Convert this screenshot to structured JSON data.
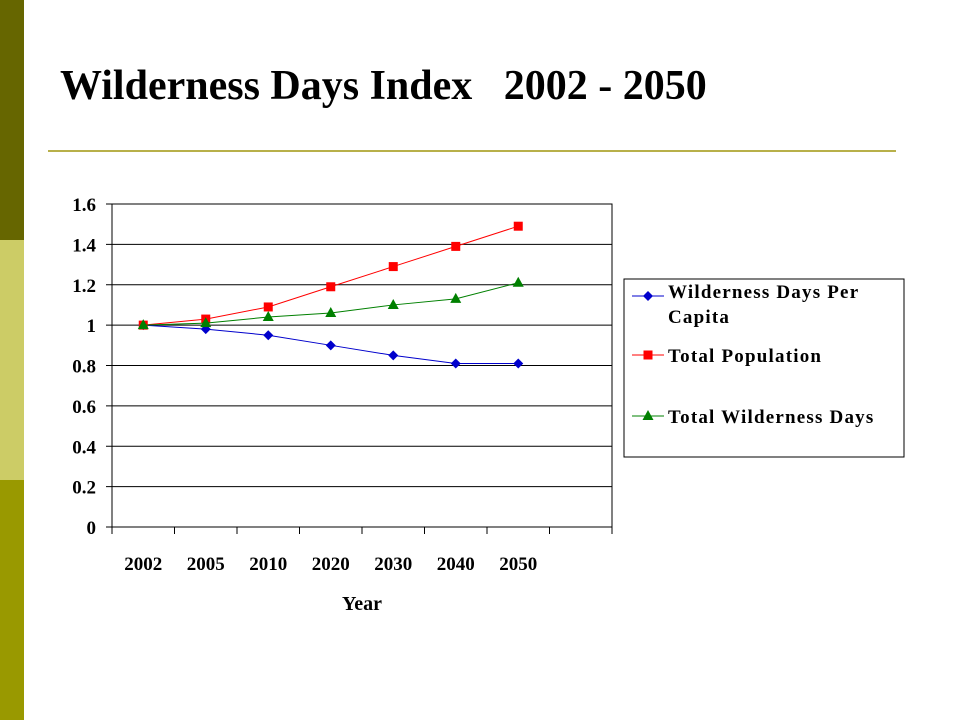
{
  "slide": {
    "title": "Wilderness Days Index   2002 - 2050",
    "sidebar_colors": [
      "#666600",
      "#cccc66",
      "#999900"
    ],
    "rule_color": "#b8b04a"
  },
  "chart_data": {
    "type": "line",
    "title": "",
    "xlabel": "Year",
    "ylabel": "",
    "categories": [
      "2002",
      "2005",
      "2010",
      "2020",
      "2030",
      "2040",
      "2050"
    ],
    "ylim": [
      0,
      1.6
    ],
    "yticks": [
      "0",
      "0.2",
      "0.4",
      "0.6",
      "0.8",
      "1",
      "1.2",
      "1.4",
      "1.6"
    ],
    "grid": true,
    "legend_position": "right",
    "series": [
      {
        "name": "Wilderness Days Per Capita",
        "color": "#0000cc",
        "marker": "diamond",
        "values": [
          1.0,
          0.98,
          0.95,
          0.9,
          0.85,
          0.81,
          0.81
        ]
      },
      {
        "name": "Total Population",
        "color": "#ff0000",
        "marker": "square",
        "values": [
          1.0,
          1.03,
          1.09,
          1.19,
          1.29,
          1.39,
          1.49
        ]
      },
      {
        "name": "Total Wilderness Days",
        "color": "#008000",
        "marker": "triangle",
        "values": [
          1.0,
          1.01,
          1.04,
          1.06,
          1.1,
          1.13,
          1.21
        ]
      }
    ]
  }
}
